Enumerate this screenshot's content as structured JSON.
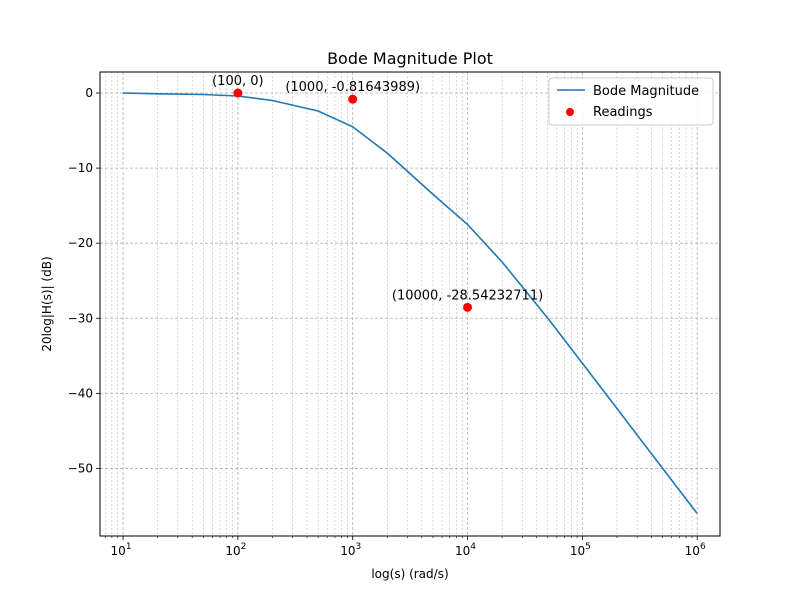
{
  "chart_data": {
    "type": "line",
    "title": "Bode Magnitude Plot",
    "xlabel": "log(s) (rad/s)",
    "ylabel": "20log|H(s)| (dB)",
    "x_scale": "log",
    "xlim": [
      6.3,
      1580000
    ],
    "ylim": [
      -59,
      2.8
    ],
    "x_ticks": [
      {
        "value": 10,
        "base": "10",
        "exp": "1"
      },
      {
        "value": 100,
        "base": "10",
        "exp": "2"
      },
      {
        "value": 1000,
        "base": "10",
        "exp": "3"
      },
      {
        "value": 10000,
        "base": "10",
        "exp": "4"
      },
      {
        "value": 100000,
        "base": "10",
        "exp": "5"
      },
      {
        "value": 1000000,
        "base": "10",
        "exp": "6"
      }
    ],
    "y_ticks": [
      {
        "value": 0,
        "label": "0"
      },
      {
        "value": -10,
        "label": "−10"
      },
      {
        "value": -20,
        "label": "−20"
      },
      {
        "value": -30,
        "label": "−30"
      },
      {
        "value": -40,
        "label": "−40"
      },
      {
        "value": -50,
        "label": "−50"
      }
    ],
    "grid": "on (major and minor, dashed)",
    "legend_position": "top-right",
    "series": [
      {
        "name": "Bode Magnitude",
        "kind": "line",
        "color": "#1f77b4",
        "x": [
          10,
          20,
          50,
          100,
          200,
          500,
          1000,
          2000,
          5000,
          10000,
          20000,
          50000,
          100000,
          200000,
          500000,
          1000000
        ],
        "y": [
          0.0,
          -0.1,
          -0.2,
          -0.4,
          -1.0,
          -2.4,
          -4.5,
          -8.0,
          -13.5,
          -17.5,
          -22.5,
          -30.0,
          -36.0,
          -42.0,
          -50.0,
          -56.0
        ]
      },
      {
        "name": "Readings",
        "kind": "scatter",
        "color": "#ff0000",
        "x": [
          100,
          1000,
          10000
        ],
        "y": [
          0,
          -0.81643989,
          -28.54232711
        ]
      }
    ],
    "annotations": [
      {
        "x": 100,
        "y": 0,
        "text": "(100, 0)"
      },
      {
        "x": 1000,
        "y": -0.81643989,
        "text": "(1000, -0.81643989)"
      },
      {
        "x": 10000,
        "y": -28.54232711,
        "text": "(10000, -28.54232711)"
      }
    ]
  }
}
